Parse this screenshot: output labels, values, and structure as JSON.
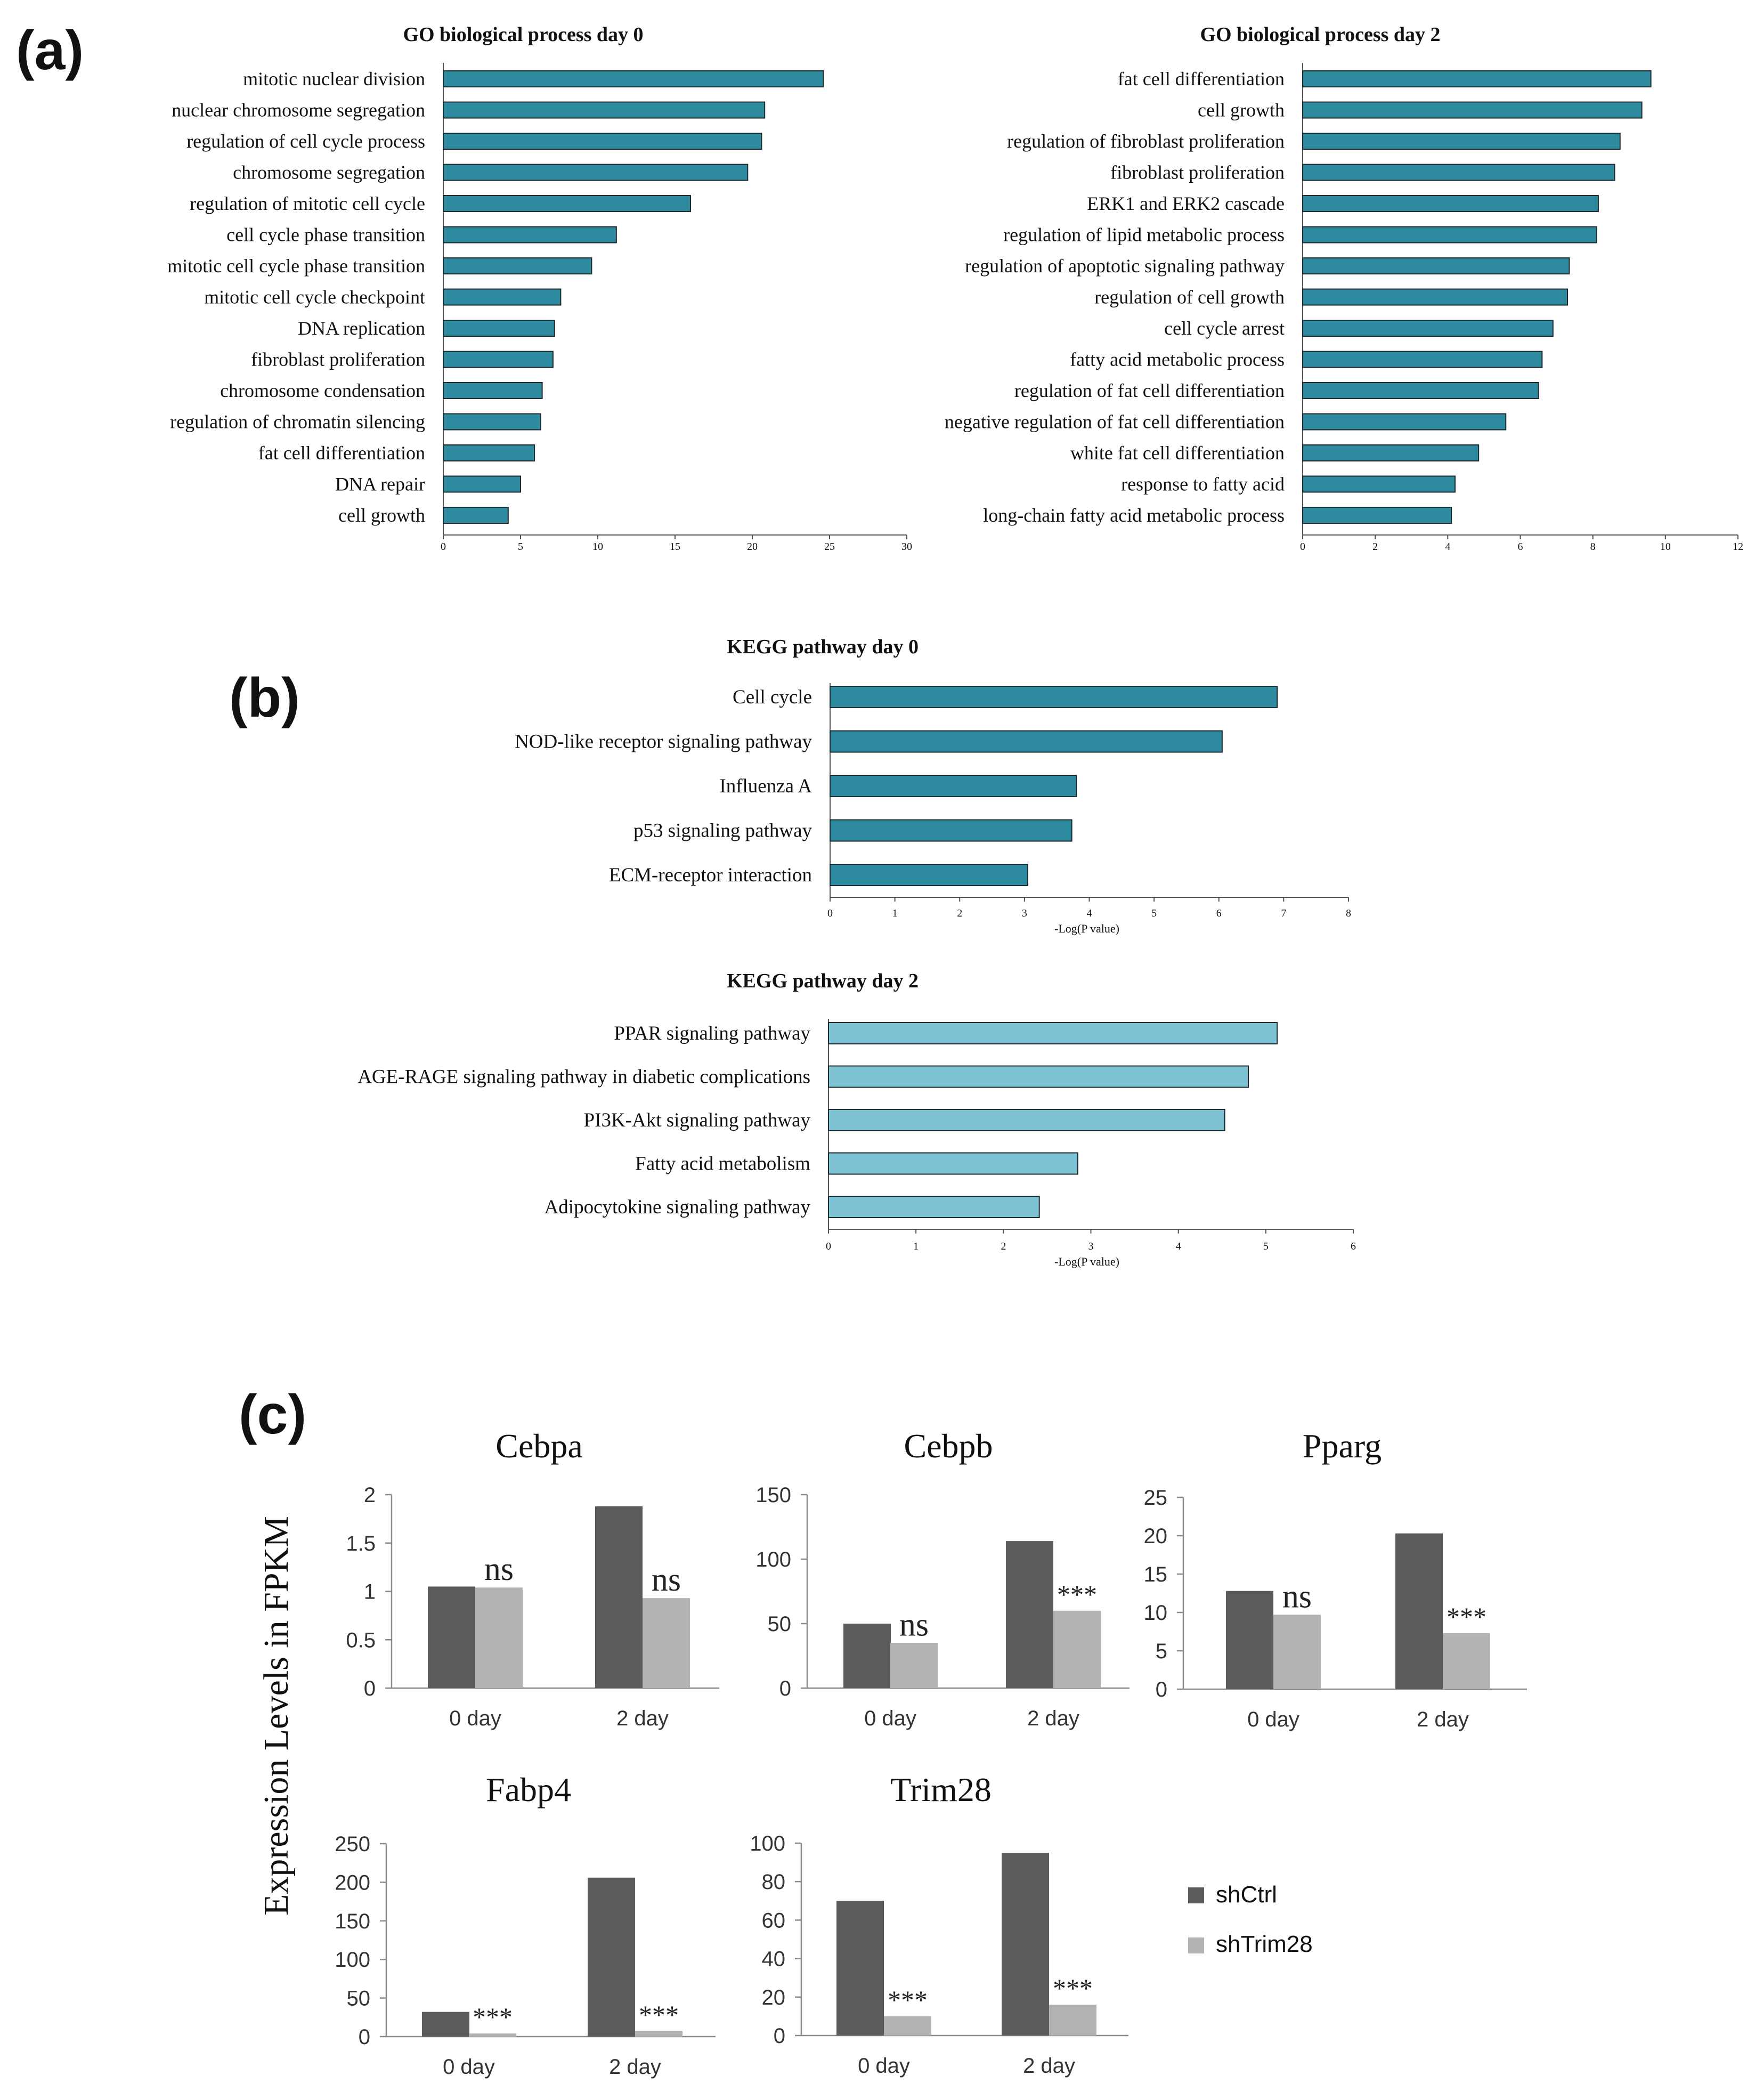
{
  "panel_labels": {
    "a": "(a)",
    "b": "(b)",
    "c": "(c)"
  },
  "colors": {
    "go": "#2e8a9e",
    "kegg_day0": "#2e8a9e",
    "kegg_day2": "#7cc2d2",
    "bar_edge": "#1f2a2e",
    "shCtrl": "#5b5b5b",
    "shTrim28": "#b3b3b3",
    "axis": "#555555",
    "text": "#111111"
  },
  "chart_data": [
    {
      "id": "go_day0",
      "type": "bar",
      "orientation": "horizontal",
      "title": "GO biological process day 0",
      "categories": [
        "mitotic nuclear division",
        "nuclear chromosome segregation",
        "regulation of cell cycle process",
        "chromosome segregation",
        "regulation of mitotic cell cycle",
        "cell cycle phase transition",
        "mitotic cell cycle phase transition",
        "mitotic cell cycle checkpoint",
        "DNA replication",
        "fibroblast proliferation",
        "chromosome condensation",
        "regulation of chromatin silencing",
        "fat cell differentiation",
        "DNA repair",
        "cell growth"
      ],
      "values": [
        24.6,
        20.8,
        20.6,
        19.7,
        16.0,
        11.2,
        9.6,
        7.6,
        7.2,
        7.1,
        6.4,
        6.3,
        5.9,
        5.0,
        4.2
      ],
      "xlabel": "",
      "xlim": [
        0,
        30
      ],
      "xticks": [
        0,
        5,
        10,
        15,
        20,
        25,
        30
      ]
    },
    {
      "id": "go_day2",
      "type": "bar",
      "orientation": "horizontal",
      "title": "GO biological process day 2",
      "categories": [
        "fat cell differentiation",
        "cell growth",
        "regulation of fibroblast proliferation",
        "fibroblast proliferation",
        "ERK1 and ERK2 cascade",
        "regulation of lipid metabolic process",
        "regulation of apoptotic signaling pathway",
        "regulation of cell growth",
        "cell cycle arrest",
        "fatty acid metabolic process",
        "regulation of fat cell differentiation",
        "negative regulation of fat cell differentiation",
        "white fat cell differentiation",
        "response to fatty acid",
        "long-chain fatty acid metabolic process"
      ],
      "values": [
        9.6,
        9.35,
        8.75,
        8.6,
        8.15,
        8.1,
        7.35,
        7.3,
        6.9,
        6.6,
        6.5,
        5.6,
        4.85,
        4.2,
        4.1
      ],
      "xlabel": "",
      "xlim": [
        0,
        12
      ],
      "xticks": [
        0,
        2,
        4,
        6,
        8,
        10,
        12
      ]
    },
    {
      "id": "kegg_day0",
      "type": "bar",
      "orientation": "horizontal",
      "title": "KEGG pathway  day 0",
      "categories": [
        "Cell cycle",
        "NOD-like receptor signaling pathway",
        "Influenza A",
        "p53 signaling pathway",
        "ECM-receptor interaction"
      ],
      "values": [
        6.9,
        6.05,
        3.8,
        3.73,
        3.05
      ],
      "xlabel": "-Log(P value)",
      "xlim": [
        0,
        8
      ],
      "xticks": [
        0,
        1,
        2,
        3,
        4,
        5,
        6,
        7,
        8
      ]
    },
    {
      "id": "kegg_day2",
      "type": "bar",
      "orientation": "horizontal",
      "title": "KEGG pathway  day 2",
      "categories": [
        "PPAR signaling pathway",
        "AGE-RAGE signaling pathway in diabetic complications",
        "PI3K-Akt signaling pathway",
        "Fatty acid metabolism",
        "Adipocytokine signaling pathway"
      ],
      "values": [
        5.13,
        4.8,
        4.53,
        2.85,
        2.41
      ],
      "xlabel": "-Log(P value)",
      "xlim": [
        0,
        6
      ],
      "xticks": [
        0,
        1,
        2,
        3,
        4,
        5,
        6
      ]
    },
    {
      "id": "cebpa",
      "type": "bar",
      "title": "Cebpa",
      "categories": [
        "0 day",
        "2 day"
      ],
      "series": [
        {
          "name": "shCtrl",
          "values": [
            1.05,
            1.88
          ]
        },
        {
          "name": "shTrim28",
          "values": [
            1.04,
            0.93
          ]
        }
      ],
      "annotations": [
        "ns",
        "ns"
      ],
      "ylim": [
        0,
        2
      ],
      "yticks": [
        0,
        0.5,
        1,
        1.5,
        2
      ],
      "ytick_labels": [
        "0",
        "0.5",
        "1",
        "1.5",
        "2"
      ]
    },
    {
      "id": "cebpb",
      "type": "bar",
      "title": "Cebpb",
      "categories": [
        "0 day",
        "2 day"
      ],
      "series": [
        {
          "name": "shCtrl",
          "values": [
            50,
            114
          ]
        },
        {
          "name": "shTrim28",
          "values": [
            35,
            60
          ]
        }
      ],
      "annotations": [
        "ns",
        "***"
      ],
      "ylim": [
        0,
        150
      ],
      "yticks": [
        0,
        50,
        100,
        150
      ],
      "ytick_labels": [
        "0",
        "50",
        "100",
        "150"
      ]
    },
    {
      "id": "pparg",
      "type": "bar",
      "title": "Pparg",
      "categories": [
        "0 day",
        "2 day"
      ],
      "series": [
        {
          "name": "shCtrl",
          "values": [
            12.8,
            20.3
          ]
        },
        {
          "name": "shTrim28",
          "values": [
            9.7,
            7.3
          ]
        }
      ],
      "annotations": [
        "ns",
        "***"
      ],
      "ylim": [
        0,
        25
      ],
      "yticks": [
        0,
        5,
        10,
        15,
        20,
        25
      ],
      "ytick_labels": [
        "0",
        "5",
        "10",
        "15",
        "20",
        "25"
      ]
    },
    {
      "id": "fabp4",
      "type": "bar",
      "title": "Fabp4",
      "categories": [
        "0 day",
        "2 day"
      ],
      "series": [
        {
          "name": "shCtrl",
          "values": [
            32,
            206
          ]
        },
        {
          "name": "shTrim28",
          "values": [
            4,
            7
          ]
        }
      ],
      "annotations": [
        "***",
        "***"
      ],
      "ylim": [
        0,
        250
      ],
      "yticks": [
        0,
        50,
        100,
        150,
        200,
        250
      ],
      "ytick_labels": [
        "0",
        "50",
        "100",
        "150",
        "200",
        "250"
      ]
    },
    {
      "id": "trim28",
      "type": "bar",
      "title": "Trim28",
      "categories": [
        "0 day",
        "2 day"
      ],
      "series": [
        {
          "name": "shCtrl",
          "values": [
            70,
            95
          ]
        },
        {
          "name": "shTrim28",
          "values": [
            10,
            16
          ]
        }
      ],
      "annotations": [
        "***",
        "***"
      ],
      "ylim": [
        0,
        100
      ],
      "yticks": [
        0,
        20,
        40,
        60,
        80,
        100
      ],
      "ytick_labels": [
        "0",
        "20",
        "40",
        "60",
        "80",
        "100"
      ]
    }
  ],
  "panel_c": {
    "ylabel": "Expression Levels in FPKM",
    "legend": [
      "shCtrl",
      "shTrim28"
    ]
  }
}
